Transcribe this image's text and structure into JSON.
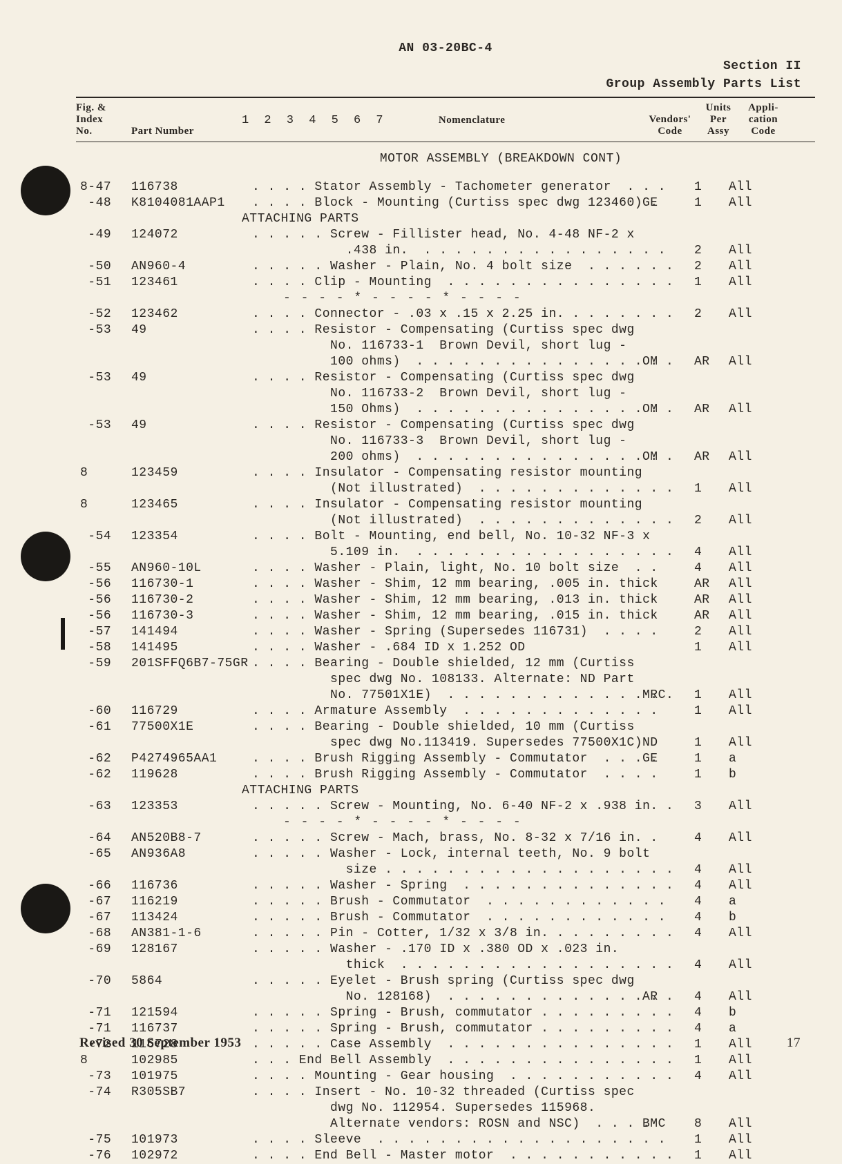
{
  "header": {
    "doc": "AN 03-20BC-4",
    "section": "Section II",
    "subtitle": "Group Assembly Parts List"
  },
  "columns": {
    "fig": "Fig. &\nIndex\nNo.",
    "pn": "Part Number",
    "indent": "1 2 3 4 5 6 7",
    "nom": "Nomenclature",
    "vc": "Vendors'\nCode",
    "upa": "Units\nPer\nAssy",
    "ac": "Appli-\ncation\nCode"
  },
  "section_title": "MOTOR ASSEMBLY (BREAKDOWN CONT)",
  "attaching": "ATTACHING PARTS",
  "separator": "- - - - * - - - - * - - - -",
  "footer": "Revised 30 September 1953",
  "page": "17",
  "rows": [
    {
      "fig": "8-47",
      "pn": "116738",
      "nom": ". . . . Stator Assembly - Tachometer generator  . . .",
      "vc": "",
      "upa": "1",
      "ac": "All"
    },
    {
      "fig": " -48",
      "pn": "K8104081AAP1",
      "nom": ". . . . Block - Mounting (Curtiss spec dwg 123460) .",
      "vc": "GE",
      "upa": "1",
      "ac": "All"
    },
    {
      "type": "attaching"
    },
    {
      "fig": " -49",
      "pn": "124072",
      "nom": ". . . . . Screw - Fillister head, No. 4-48 NF-2 x",
      "vc": "",
      "upa": "",
      "ac": ""
    },
    {
      "fig": "",
      "pn": "",
      "nom": "            .438 in.  . . . . . . . . . . . . . . . .",
      "vc": "",
      "upa": "2",
      "ac": "All"
    },
    {
      "fig": " -50",
      "pn": "AN960-4",
      "nom": ". . . . . Washer - Plain, No. 4 bolt size  . . . . . .",
      "vc": "",
      "upa": "2",
      "ac": "All"
    },
    {
      "fig": " -51",
      "pn": "123461",
      "nom": ". . . . Clip - Mounting  . . . . . . . . . . . . . . .",
      "vc": "",
      "upa": "1",
      "ac": "All"
    },
    {
      "type": "sep"
    },
    {
      "fig": " -52",
      "pn": "123462",
      "nom": ". . . . Connector - .03 x .15 x 2.25 in. . . . . . . .",
      "vc": "",
      "upa": "2",
      "ac": "All"
    },
    {
      "fig": " -53",
      "pn": "49",
      "nom": ". . . . Resistor - Compensating (Curtiss spec dwg",
      "vc": "",
      "upa": "",
      "ac": ""
    },
    {
      "fig": "",
      "pn": "",
      "nom": "          No. 116733-1  Brown Devil, short lug -",
      "vc": "",
      "upa": "",
      "ac": ""
    },
    {
      "fig": "",
      "pn": "",
      "nom": "          100 ohms)  . . . . . . . . . . . . . . . . .",
      "vc": "OM",
      "upa": "AR",
      "ac": "All"
    },
    {
      "fig": " -53",
      "pn": "49",
      "nom": ". . . . Resistor - Compensating (Curtiss spec dwg",
      "vc": "",
      "upa": "",
      "ac": ""
    },
    {
      "fig": "",
      "pn": "",
      "nom": "          No. 116733-2  Brown Devil, short lug -",
      "vc": "",
      "upa": "",
      "ac": ""
    },
    {
      "fig": "",
      "pn": "",
      "nom": "          150 Ohms)  . . . . . . . . . . . . . . . . .",
      "vc": "OM",
      "upa": "AR",
      "ac": "All"
    },
    {
      "fig": " -53",
      "pn": "49",
      "nom": ". . . . Resistor - Compensating (Curtiss spec dwg",
      "vc": "",
      "upa": "",
      "ac": ""
    },
    {
      "fig": "",
      "pn": "",
      "nom": "          No. 116733-3  Brown Devil, short lug -",
      "vc": "",
      "upa": "",
      "ac": ""
    },
    {
      "fig": "",
      "pn": "",
      "nom": "          200 ohms)  . . . . . . . . . . . . . . . . .",
      "vc": "OM",
      "upa": "AR",
      "ac": "All"
    },
    {
      "fig": "8",
      "pn": "123459",
      "nom": ". . . . Insulator - Compensating resistor mounting",
      "vc": "",
      "upa": "",
      "ac": ""
    },
    {
      "fig": "",
      "pn": "",
      "nom": "          (Not illustrated)  . . . . . . . . . . . . .",
      "vc": "",
      "upa": "1",
      "ac": "All"
    },
    {
      "fig": "8",
      "pn": "123465",
      "nom": ". . . . Insulator - Compensating resistor mounting",
      "vc": "",
      "upa": "",
      "ac": ""
    },
    {
      "fig": "",
      "pn": "",
      "nom": "          (Not illustrated)  . . . . . . . . . . . . .",
      "vc": "",
      "upa": "2",
      "ac": "All"
    },
    {
      "fig": " -54",
      "pn": "123354",
      "nom": ". . . . Bolt - Mounting, end bell, No. 10-32 NF-3 x",
      "vc": "",
      "upa": "",
      "ac": ""
    },
    {
      "fig": "",
      "pn": "",
      "nom": "          5.109 in.  . . . . . . . . . . . . . . . . .",
      "vc": "",
      "upa": "4",
      "ac": "All"
    },
    {
      "fig": " -55",
      "pn": "AN960-10L",
      "nom": ". . . . Washer - Plain, light, No. 10 bolt size  . .",
      "vc": "",
      "upa": "4",
      "ac": "All"
    },
    {
      "fig": " -56",
      "pn": "116730-1",
      "nom": ". . . . Washer - Shim, 12 mm bearing, .005 in. thick",
      "vc": "",
      "upa": "AR",
      "ac": "All"
    },
    {
      "fig": " -56",
      "pn": "116730-2",
      "nom": ". . . . Washer - Shim, 12 mm bearing, .013 in. thick",
      "vc": "",
      "upa": "AR",
      "ac": "All"
    },
    {
      "fig": " -56",
      "pn": "116730-3",
      "nom": ". . . . Washer - Shim, 12 mm bearing, .015 in. thick",
      "vc": "",
      "upa": "AR",
      "ac": "All"
    },
    {
      "fig": " -57",
      "pn": "141494",
      "nom": ". . . . Washer - Spring (Supersedes 116731)  . . . .",
      "vc": "",
      "upa": "2",
      "ac": "All"
    },
    {
      "fig": " -58",
      "pn": "141495",
      "nom": ". . . . Washer - .684 ID x 1.252 OD",
      "vc": "",
      "upa": "1",
      "ac": "All"
    },
    {
      "fig": " -59",
      "pn": "201SFFQ6B7-75GR",
      "nom": ". . . . Bearing - Double shielded, 12 mm (Curtiss",
      "vc": "",
      "upa": "",
      "ac": ""
    },
    {
      "fig": "",
      "pn": "",
      "nom": "          spec dwg No. 108133. Alternate: ND Part",
      "vc": "",
      "upa": "",
      "ac": ""
    },
    {
      "fig": "",
      "pn": "",
      "nom": "          No. 77501X1E)  . . . . . . . . . . . . . . .",
      "vc": "MRC",
      "upa": "1",
      "ac": "All"
    },
    {
      "fig": " -60",
      "pn": "116729",
      "nom": ". . . . Armature Assembly  . . . . . . . . . . . . .",
      "vc": "",
      "upa": "1",
      "ac": "All"
    },
    {
      "fig": " -61",
      "pn": "77500X1E",
      "nom": ". . . . Bearing - Double shielded, 10 mm (Curtiss",
      "vc": "",
      "upa": "",
      "ac": ""
    },
    {
      "fig": "",
      "pn": "",
      "nom": "          spec dwg No.113419. Supersedes 77500X1C)",
      "vc": "ND",
      "upa": "1",
      "ac": "All"
    },
    {
      "fig": " -62",
      "pn": "P4274965AA1",
      "nom": ". . . . Brush Rigging Assembly - Commutator  . . . .",
      "vc": "GE",
      "upa": "1",
      "ac": "a"
    },
    {
      "fig": " -62",
      "pn": "119628",
      "nom": ". . . . Brush Rigging Assembly - Commutator  . . . .",
      "vc": "",
      "upa": "1",
      "ac": "b"
    },
    {
      "type": "attaching"
    },
    {
      "fig": " -63",
      "pn": "123353",
      "nom": ". . . . . Screw - Mounting, No. 6-40 NF-2 x .938 in. .",
      "vc": "",
      "upa": "3",
      "ac": "All"
    },
    {
      "type": "sep"
    },
    {
      "fig": " -64",
      "pn": "AN520B8-7",
      "nom": ". . . . . Screw - Mach, brass, No. 8-32 x 7/16 in. .",
      "vc": "",
      "upa": "4",
      "ac": "All"
    },
    {
      "fig": " -65",
      "pn": "AN936A8",
      "nom": ". . . . . Washer - Lock, internal teeth, No. 9 bolt",
      "vc": "",
      "upa": "",
      "ac": ""
    },
    {
      "fig": "",
      "pn": "",
      "nom": "            size . . . . . . . . . . . . . . . . . . .",
      "vc": "",
      "upa": "4",
      "ac": "All"
    },
    {
      "fig": " -66",
      "pn": "116736",
      "nom": ". . . . . Washer - Spring  . . . . . . . . . . . . . .",
      "vc": "",
      "upa": "4",
      "ac": "All"
    },
    {
      "fig": " -67",
      "pn": "116219",
      "nom": ". . . . . Brush - Commutator  . . . . . . . . . . . .",
      "vc": "",
      "upa": "4",
      "ac": "a"
    },
    {
      "fig": " -67",
      "pn": "113424",
      "nom": ". . . . . Brush - Commutator  . . . . . . . . . . . .",
      "vc": "",
      "upa": "4",
      "ac": "b"
    },
    {
      "fig": " -68",
      "pn": "AN381-1-6",
      "nom": ". . . . . Pin - Cotter, 1/32 x 3/8 in. . . . . . . . .",
      "vc": "",
      "upa": "4",
      "ac": "All"
    },
    {
      "fig": " -69",
      "pn": "128167",
      "nom": ". . . . . Washer - .170 ID x .380 OD x .023 in.",
      "vc": "",
      "upa": "",
      "ac": ""
    },
    {
      "fig": "",
      "pn": "",
      "nom": "            thick  . . . . . . . . . . . . . . . . . .",
      "vc": "",
      "upa": "4",
      "ac": "All"
    },
    {
      "fig": " -70",
      "pn": "5864",
      "nom": ". . . . . Eyelet - Brush spring (Curtiss spec dwg",
      "vc": "",
      "upa": "",
      "ac": ""
    },
    {
      "fig": "",
      "pn": "",
      "nom": "            No. 128168)  . . . . . . . . . . . . . . .",
      "vc": "AR",
      "upa": "4",
      "ac": "All"
    },
    {
      "fig": " -71",
      "pn": "121594",
      "nom": ". . . . . Spring - Brush, commutator . . . . . . . . .",
      "vc": "",
      "upa": "4",
      "ac": "b"
    },
    {
      "fig": " -71",
      "pn": "116737",
      "nom": ". . . . . Spring - Brush, commutator . . . . . . . . .",
      "vc": "",
      "upa": "4",
      "ac": "a"
    },
    {
      "fig": " -72",
      "pn": "116728",
      "nom": ". . . . . Case Assembly  . . . . . . . . . . . . . . .",
      "vc": "",
      "upa": "1",
      "ac": "All"
    },
    {
      "fig": "8",
      "pn": "102985",
      "nom": ". . . End Bell Assembly  . . . . . . . . . . . . . . .",
      "vc": "",
      "upa": "1",
      "ac": "All"
    },
    {
      "fig": " -73",
      "pn": "101975",
      "nom": ". . . . Mounting - Gear housing  . . . . . . . . . . .",
      "vc": "",
      "upa": "4",
      "ac": "All"
    },
    {
      "fig": " -74",
      "pn": "R305SB7",
      "nom": ". . . . Insert - No. 10-32 threaded (Curtiss spec",
      "vc": "",
      "upa": "",
      "ac": ""
    },
    {
      "fig": "",
      "pn": "",
      "nom": "          dwg No. 112954. Supersedes 115968.",
      "vc": "",
      "upa": "",
      "ac": ""
    },
    {
      "fig": "",
      "pn": "",
      "nom": "          Alternate vendors: ROSN and NSC)  . . . .",
      "vc": "BMC",
      "upa": "8",
      "ac": "All"
    },
    {
      "fig": " -75",
      "pn": "101973",
      "nom": ". . . . Sleeve  . . . . . . . . . . . . . . . . . . .",
      "vc": "",
      "upa": "1",
      "ac": "All"
    },
    {
      "fig": " -76",
      "pn": "102972",
      "nom": ". . . . End Bell - Master motor  . . . . . . . . . . .",
      "vc": "",
      "upa": "1",
      "ac": "All"
    }
  ]
}
